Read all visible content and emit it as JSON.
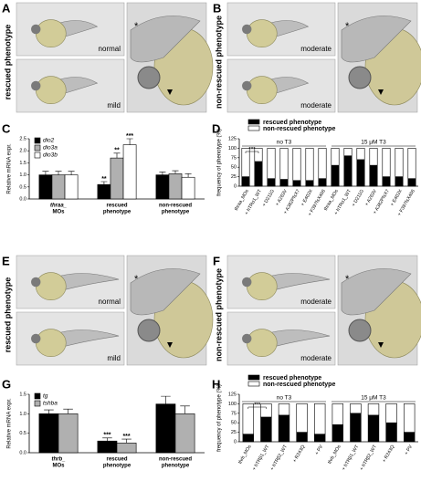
{
  "image_panels": [
    {
      "letter": "A",
      "side_label": "rescued phenotype",
      "labels": [
        "normal",
        "mild"
      ],
      "asterisk": "*"
    },
    {
      "letter": "B",
      "side_label": "non-rescued phenotype",
      "labels": [
        "moderate",
        "moderate"
      ],
      "asterisk": "*"
    },
    {
      "letter": "E",
      "side_label": "rescued phenotype",
      "labels": [
        "normal",
        "mild"
      ],
      "asterisk": "*"
    },
    {
      "letter": "F",
      "side_label": "non-rescued phenotype",
      "labels": [
        "moderate",
        "moderate"
      ],
      "asterisk": "*"
    }
  ],
  "chart_data": [
    {
      "type": "bar",
      "panel": "C",
      "y_label": "Relative mRNA expr.",
      "legend": "upper left",
      "categories": [
        [
          "thraa_",
          "MOs"
        ],
        [
          "rescued",
          "phenotype"
        ],
        [
          "non-rescued",
          "phenotype"
        ]
      ],
      "ylim": [
        0,
        2.5
      ],
      "yticks": [
        {
          "value": 0,
          "label": "0.0"
        },
        {
          "value": 0.5,
          "label": "0.5"
        },
        {
          "value": 1,
          "label": "1.0"
        },
        {
          "value": 1.5,
          "label": "1.5"
        },
        {
          "value": 2,
          "label": "2.0"
        },
        {
          "value": 2.5,
          "label": "2.5"
        }
      ],
      "series": [
        {
          "name": "dio2",
          "color": "#000000",
          "values": [
            1.0,
            0.6,
            1.0
          ],
          "errors": [
            0.15,
            0.12,
            0.12
          ],
          "significance": [
            null,
            "**",
            null
          ]
        },
        {
          "name": "dio3a",
          "color": "#b0b0b0",
          "values": [
            1.0,
            1.7,
            1.05
          ],
          "errors": [
            0.15,
            0.2,
            0.12
          ],
          "significance": [
            null,
            "**",
            null
          ]
        },
        {
          "name": "dio3b",
          "color": "#ffffff",
          "values": [
            1.0,
            2.25,
            0.9
          ],
          "errors": [
            0.15,
            0.25,
            0.15
          ],
          "significance": [
            null,
            "***",
            null
          ]
        }
      ]
    },
    {
      "type": "stacked_bar",
      "panel": "D",
      "y_label": "frequency of phenotype (%)",
      "legend": "top",
      "annotation": "***",
      "groups": [
        "no T3",
        "15 μM T3"
      ],
      "categories": [
        "thraa_MOs",
        "+ hTRα1_WT",
        "+ D211G",
        "+ A263V",
        "+ A382PfsX7",
        "+ E403X",
        "+ F397fsX406",
        "thraa_MOs",
        "+ hTRα1_WT",
        "+ D211G",
        "+ A263V",
        "+ A382PfsX7",
        "+ E403X",
        "+ F397fsX406"
      ],
      "ylim": [
        0,
        125
      ],
      "yticks": [
        0,
        25,
        50,
        75,
        100,
        125
      ],
      "series": [
        {
          "name": "rescued phenotype",
          "color": "#000000",
          "values": [
            25,
            65,
            20,
            18,
            15,
            15,
            20,
            55,
            80,
            70,
            55,
            25,
            25,
            20
          ]
        },
        {
          "name": "non-rescued phenotype",
          "color": "#ffffff",
          "values": [
            75,
            35,
            80,
            82,
            85,
            85,
            80,
            45,
            20,
            30,
            45,
            75,
            75,
            80
          ]
        }
      ]
    },
    {
      "type": "bar",
      "panel": "G",
      "y_label": "Relative mRNA expr.",
      "legend": "upper left",
      "categories": [
        [
          "thrb_",
          "MOs"
        ],
        [
          "rescued",
          "phenotype"
        ],
        [
          "non-rescued",
          "phenotype"
        ]
      ],
      "ylim": [
        0,
        1.5
      ],
      "yticks": [
        {
          "value": 0,
          "label": "0.0"
        },
        {
          "value": 0.5,
          "label": "0.5"
        },
        {
          "value": 1,
          "label": "1.0"
        },
        {
          "value": 1.5,
          "label": "1.5"
        }
      ],
      "series": [
        {
          "name": "tg",
          "color": "#000000",
          "values": [
            1.0,
            0.3,
            1.25
          ],
          "errors": [
            0.1,
            0.08,
            0.2
          ],
          "significance": [
            null,
            "***",
            null
          ]
        },
        {
          "name": "tshba",
          "color": "#b0b0b0",
          "values": [
            1.0,
            0.25,
            1.0
          ],
          "errors": [
            0.12,
            0.1,
            0.2
          ],
          "significance": [
            null,
            "***",
            null
          ]
        }
      ]
    },
    {
      "type": "stacked_bar",
      "panel": "H",
      "y_label": "frequency of phenotype (%)",
      "legend": "top",
      "annotation": "***",
      "groups": [
        "no T3",
        "15 μM T3"
      ],
      "categories": [
        "thrb_MOs",
        "+ hTRβ1_WT",
        "+ hTRβ2_WT",
        "+ R243Q",
        "+ PV",
        "thrb_MOs",
        "+ hTRβ1_WT",
        "+ hTRβ2_WT",
        "+ R243Q",
        "+ PV"
      ],
      "ylim": [
        0,
        125
      ],
      "yticks": [
        0,
        25,
        50,
        75,
        100,
        125
      ],
      "series": [
        {
          "name": "rescued phenotype",
          "color": "#000000",
          "values": [
            20,
            65,
            70,
            25,
            20,
            45,
            75,
            70,
            50,
            25
          ]
        },
        {
          "name": "non-rescued phenotype",
          "color": "#ffffff",
          "values": [
            80,
            35,
            30,
            75,
            80,
            55,
            25,
            30,
            50,
            75
          ]
        }
      ]
    }
  ]
}
